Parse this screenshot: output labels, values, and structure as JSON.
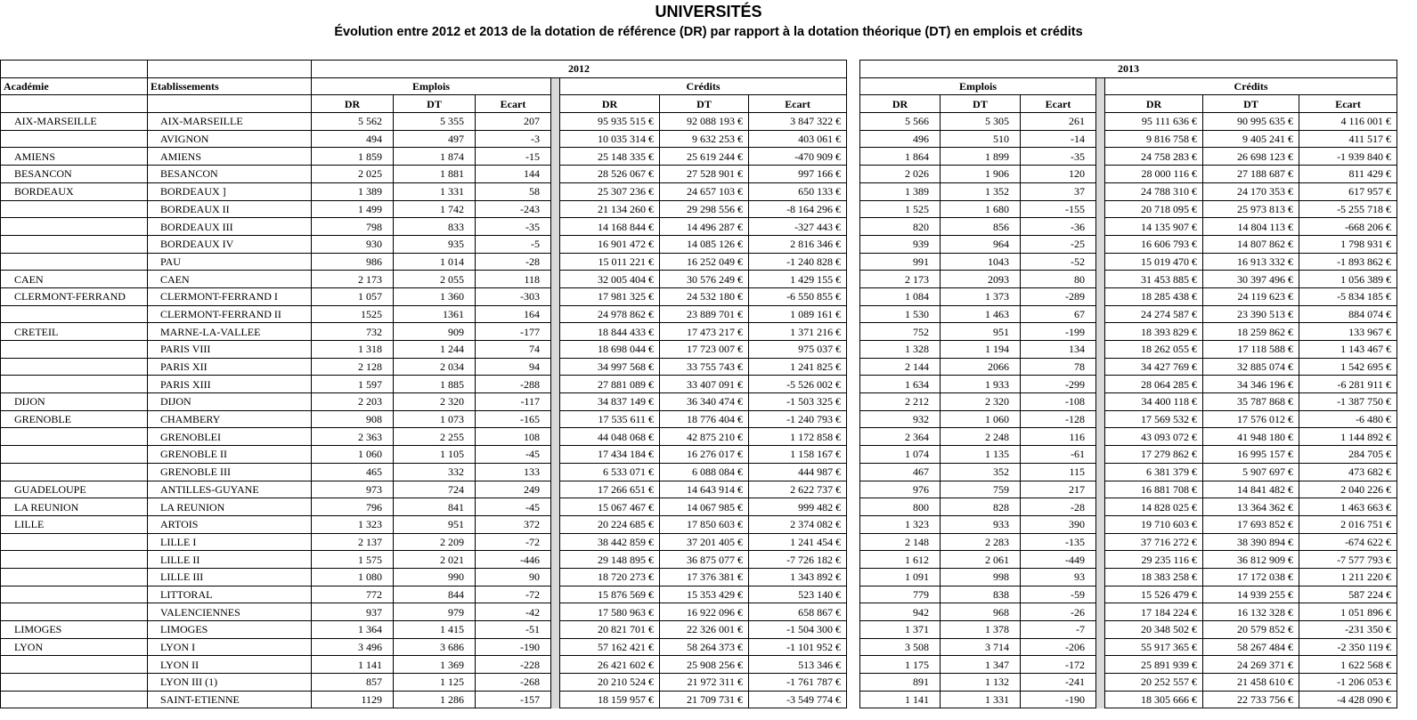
{
  "title": "UNIVERSITÉS",
  "subtitle": "Évolution entre 2012 et 2013 de la dotation de référence (DR) par rapport à la dotation théorique (DT) en emplois et crédits",
  "headers": {
    "academie": "Académie",
    "etablissements": "Etablissements",
    "year_2012": "2012",
    "year_2013": "2013",
    "emplois": "Emplois",
    "credits": "Crédits",
    "dr": "DR",
    "dt": "DT",
    "ecart": "Ecart"
  },
  "rows": [
    {
      "academie": "AIX-MARSEILLE",
      "etablissement": "AIX-MARSEILLE",
      "y2012": [
        "5 562",
        "5 355",
        "207",
        "95 935 515 €",
        "92 088 193 €",
        "3 847 322 €"
      ],
      "y2013": [
        "5 566",
        "5 305",
        "261",
        "95 111 636 €",
        "90 995 635 €",
        "4 116 001 €"
      ]
    },
    {
      "academie": "",
      "etablissement": "AVIGNON",
      "y2012": [
        "494",
        "497",
        "-3",
        "10 035 314 €",
        "9 632 253 €",
        "403 061 €"
      ],
      "y2013": [
        "496",
        "510",
        "-14",
        "9 816 758 €",
        "9 405 241 €",
        "411 517 €"
      ]
    },
    {
      "academie": "AMIENS",
      "etablissement": "AMIENS",
      "y2012": [
        "1 859",
        "1 874",
        "-15",
        "25 148 335 €",
        "25 619 244 €",
        "-470 909 €"
      ],
      "y2013": [
        "1 864",
        "1 899",
        "-35",
        "24 758 283 €",
        "26 698 123 €",
        "-1 939 840 €"
      ]
    },
    {
      "academie": "BESANCON",
      "etablissement": "BESANCON",
      "y2012": [
        "2 025",
        "1 881",
        "144",
        "28 526 067 €",
        "27 528 901 €",
        "997 166 €"
      ],
      "y2013": [
        "2 026",
        "1 906",
        "120",
        "28 000 116 €",
        "27 188 687 €",
        "811 429 €"
      ]
    },
    {
      "academie": "BORDEAUX",
      "etablissement": "BORDEAUX ]",
      "y2012": [
        "1 389",
        "1 331",
        "58",
        "25 307 236 €",
        "24 657 103 €",
        "650 133 €"
      ],
      "y2013": [
        "1 389",
        "1 352",
        "37",
        "24 788 310 €",
        "24 170 353 €",
        "617 957 €"
      ]
    },
    {
      "academie": "",
      "etablissement": "BORDEAUX II",
      "y2012": [
        "1 499",
        "1 742",
        "-243",
        "21 134 260 €",
        "29 298 556 €",
        "-8 164 296 €"
      ],
      "y2013": [
        "1 525",
        "1 680",
        "-155",
        "20 718 095 €",
        "25 973 813 €",
        "-5 255 718 €"
      ]
    },
    {
      "academie": "",
      "etablissement": "BORDEAUX III",
      "y2012": [
        "798",
        "833",
        "-35",
        "14 168 844 €",
        "14 496 287 €",
        "-327 443 €"
      ],
      "y2013": [
        "820",
        "856",
        "-36",
        "14 135 907 €",
        "14 804 113 €",
        "-668 206 €"
      ]
    },
    {
      "academie": "",
      "etablissement": "BORDEAUX IV",
      "y2012": [
        "930",
        "935",
        "-5",
        "16 901 472 €",
        "14 085 126 €",
        "2 816 346 €"
      ],
      "y2013": [
        "939",
        "964",
        "-25",
        "16 606 793 €",
        "14 807 862 €",
        "1 798 931 €"
      ]
    },
    {
      "academie": "",
      "etablissement": "PAU",
      "y2012": [
        "986",
        "1 014",
        "-28",
        "15 011 221 €",
        "16 252 049 €",
        "-1 240 828 €"
      ],
      "y2013": [
        "991",
        "1043",
        "-52",
        "15 019 470 €",
        "16 913 332 €",
        "-1 893 862 €"
      ]
    },
    {
      "academie": "CAEN",
      "etablissement": "CAEN",
      "y2012": [
        "2 173",
        "2 055",
        "118",
        "32 005 404 €",
        "30 576 249 €",
        "1 429 155 €"
      ],
      "y2013": [
        "2 173",
        "2093",
        "80",
        "31 453 885 €",
        "30 397 496 €",
        "1 056 389 €"
      ]
    },
    {
      "academie": "CLERMONT-FERRAND",
      "etablissement": "CLERMONT-FERRAND I",
      "y2012": [
        "1 057",
        "1 360",
        "-303",
        "17 981 325 €",
        "24 532 180 €",
        "-6 550 855 €"
      ],
      "y2013": [
        "1 084",
        "1 373",
        "-289",
        "18 285 438 €",
        "24 119 623 €",
        "-5 834 185 €"
      ]
    },
    {
      "academie": "",
      "etablissement": "CLERMONT-FERRAND II",
      "y2012": [
        "1525",
        "1361",
        "164",
        "24 978 862 €",
        "23 889 701 €",
        "1 089 161 €"
      ],
      "y2013": [
        "1 530",
        "1 463",
        "67",
        "24 274 587 €",
        "23 390 513 €",
        "884 074 €"
      ]
    },
    {
      "academie": "CRETEIL",
      "etablissement": "MARNE-LA-VALLEE",
      "y2012": [
        "732",
        "909",
        "-177",
        "18 844 433 €",
        "17 473 217 €",
        "1 371 216 €"
      ],
      "y2013": [
        "752",
        "951",
        "-199",
        "18 393 829 €",
        "18 259 862 €",
        "133 967 €"
      ]
    },
    {
      "academie": "",
      "etablissement": "PARIS VIII",
      "y2012": [
        "1 318",
        "1 244",
        "74",
        "18 698 044 €",
        "17 723 007 €",
        "975 037 €"
      ],
      "y2013": [
        "1 328",
        "1 194",
        "134",
        "18 262 055 €",
        "17 118 588 €",
        "1 143 467 €"
      ]
    },
    {
      "academie": "",
      "etablissement": "PARIS XII",
      "y2012": [
        "2 128",
        "2 034",
        "94",
        "34 997 568 €",
        "33 755 743 €",
        "1 241 825 €"
      ],
      "y2013": [
        "2 144",
        "2066",
        "78",
        "34 427 769 €",
        "32 885 074 €",
        "1 542 695 €"
      ]
    },
    {
      "academie": "",
      "etablissement": "PARIS XIII",
      "y2012": [
        "1 597",
        "1 885",
        "-288",
        "27 881 089 €",
        "33 407 091 €",
        "-5 526 002 €"
      ],
      "y2013": [
        "1 634",
        "1 933",
        "-299",
        "28 064 285 €",
        "34 346 196 €",
        "-6 281 911 €"
      ]
    },
    {
      "academie": "DIJON",
      "etablissement": "DIJON",
      "y2012": [
        "2 203",
        "2 320",
        "-117",
        "34 837 149 €",
        "36 340 474 €",
        "-1 503 325 €"
      ],
      "y2013": [
        "2 212",
        "2 320",
        "-108",
        "34 400 118 €",
        "35 787 868 €",
        "-1 387 750 €"
      ]
    },
    {
      "academie": "GRENOBLE",
      "etablissement": "CHAMBERY",
      "y2012": [
        "908",
        "1 073",
        "-165",
        "17 535 611 €",
        "18 776 404 €",
        "-1 240 793 €"
      ],
      "y2013": [
        "932",
        "1 060",
        "-128",
        "17 569 532 €",
        "17 576 012 €",
        "-6 480 €"
      ]
    },
    {
      "academie": "",
      "etablissement": "GRENOBLEI",
      "y2012": [
        "2 363",
        "2 255",
        "108",
        "44 048 068 €",
        "42 875 210 €",
        "1 172 858 €"
      ],
      "y2013": [
        "2 364",
        "2 248",
        "116",
        "43 093 072 €",
        "41 948 180 €",
        "1 144 892 €"
      ]
    },
    {
      "academie": "",
      "etablissement": "GRENOBLE II",
      "y2012": [
        "1 060",
        "1 105",
        "-45",
        "17 434 184 €",
        "16 276 017 €",
        "1 158 167 €"
      ],
      "y2013": [
        "1 074",
        "1 135",
        "-61",
        "17 279 862 €",
        "16 995 157 €",
        "284 705 €"
      ]
    },
    {
      "academie": "",
      "etablissement": "GRENOBLE III",
      "y2012": [
        "465",
        "332",
        "133",
        "6 533 071 €",
        "6 088 084 €",
        "444 987 €"
      ],
      "y2013": [
        "467",
        "352",
        "115",
        "6 381 379 €",
        "5 907 697 €",
        "473 682 €"
      ]
    },
    {
      "academie": "GUADELOUPE",
      "etablissement": "ANTILLES-GUYANE",
      "y2012": [
        "973",
        "724",
        "249",
        "17 266 651 €",
        "14 643 914 €",
        "2 622 737 €"
      ],
      "y2013": [
        "976",
        "759",
        "217",
        "16 881 708 €",
        "14 841 482 €",
        "2 040 226 €"
      ]
    },
    {
      "academie": "LA REUNION",
      "etablissement": "LA REUNION",
      "y2012": [
        "796",
        "841",
        "-45",
        "15 067 467 €",
        "14 067 985 €",
        "999 482 €"
      ],
      "y2013": [
        "800",
        "828",
        "-28",
        "14 828 025 €",
        "13 364 362 €",
        "1 463 663 €"
      ]
    },
    {
      "academie": "LILLE",
      "etablissement": "ARTOIS",
      "y2012": [
        "1 323",
        "951",
        "372",
        "20 224 685 €",
        "17 850 603 €",
        "2 374 082 €"
      ],
      "y2013": [
        "1 323",
        "933",
        "390",
        "19 710 603 €",
        "17 693 852 €",
        "2 016 751 €"
      ]
    },
    {
      "academie": "",
      "etablissement": "LILLE I",
      "y2012": [
        "2 137",
        "2 209",
        "-72",
        "38 442 859 €",
        "37 201 405 €",
        "1 241 454 €"
      ],
      "y2013": [
        "2 148",
        "2 283",
        "-135",
        "37 716 272 €",
        "38 390 894 €",
        "-674 622 €"
      ]
    },
    {
      "academie": "",
      "etablissement": "LILLE II",
      "y2012": [
        "1 575",
        "2 021",
        "-446",
        "29 148 895 €",
        "36 875 077 €",
        "-7 726 182 €"
      ],
      "y2013": [
        "1 612",
        "2 061",
        "-449",
        "29 235 116 €",
        "36 812 909 €",
        "-7 577 793 €"
      ]
    },
    {
      "academie": "",
      "etablissement": "LILLE III",
      "y2012": [
        "1 080",
        "990",
        "90",
        "18 720 273 €",
        "17 376 381 €",
        "1 343 892 €"
      ],
      "y2013": [
        "1 091",
        "998",
        "93",
        "18 383 258 €",
        "17 172 038 €",
        "1 211 220 €"
      ]
    },
    {
      "academie": "",
      "etablissement": "LITTORAL",
      "y2012": [
        "772",
        "844",
        "-72",
        "15 876 569 €",
        "15 353 429 €",
        "523 140 €"
      ],
      "y2013": [
        "779",
        "838",
        "-59",
        "15 526 479 €",
        "14 939 255 €",
        "587 224 €"
      ]
    },
    {
      "academie": "",
      "etablissement": "VALENCIENNES",
      "y2012": [
        "937",
        "979",
        "-42",
        "17 580 963 €",
        "16 922 096 €",
        "658 867 €"
      ],
      "y2013": [
        "942",
        "968",
        "-26",
        "17 184 224 €",
        "16 132 328 €",
        "1 051 896 €"
      ]
    },
    {
      "academie": "LIMOGES",
      "etablissement": "LIMOGES",
      "y2012": [
        "1 364",
        "1 415",
        "-51",
        "20 821 701 €",
        "22 326 001 €",
        "-1 504 300 €"
      ],
      "y2013": [
        "1 371",
        "1 378",
        "-7",
        "20 348 502 €",
        "20 579 852 €",
        "-231 350 €"
      ]
    },
    {
      "academie": "LYON",
      "etablissement": "LYON I",
      "y2012": [
        "3 496",
        "3 686",
        "-190",
        "57 162 421 €",
        "58 264 373 €",
        "-1 101 952 €"
      ],
      "y2013": [
        "3 508",
        "3 714",
        "-206",
        "55 917 365 €",
        "58 267 484 €",
        "-2 350 119 €"
      ]
    },
    {
      "academie": "",
      "etablissement": "LYON II",
      "y2012": [
        "1 141",
        "1 369",
        "-228",
        "26 421 602 €",
        "25 908 256 €",
        "513 346 €"
      ],
      "y2013": [
        "1 175",
        "1 347",
        "-172",
        "25 891 939 €",
        "24 269 371 €",
        "1 622 568 €"
      ]
    },
    {
      "academie": "",
      "etablissement": "LYON III (1)",
      "y2012": [
        "857",
        "1 125",
        "-268",
        "20 210 524 €",
        "21 972 311 €",
        "-1 761 787 €"
      ],
      "y2013": [
        "891",
        "1 132",
        "-241",
        "20 252 557 €",
        "21 458 610 €",
        "-1 206 053 €"
      ]
    },
    {
      "academie": "",
      "etablissement": "SAINT-ETIENNE",
      "y2012": [
        "1129",
        "1 286",
        "-157",
        "18 159 957 €",
        "21 709 731 €",
        "-3 549 774 €"
      ],
      "y2013": [
        "1 141",
        "1 331",
        "-190",
        "18 305 666 €",
        "22 733 756 €",
        "-4 428 090 €"
      ]
    }
  ],
  "colors": {
    "separator": "#d9d9d9",
    "border": "#000000"
  }
}
